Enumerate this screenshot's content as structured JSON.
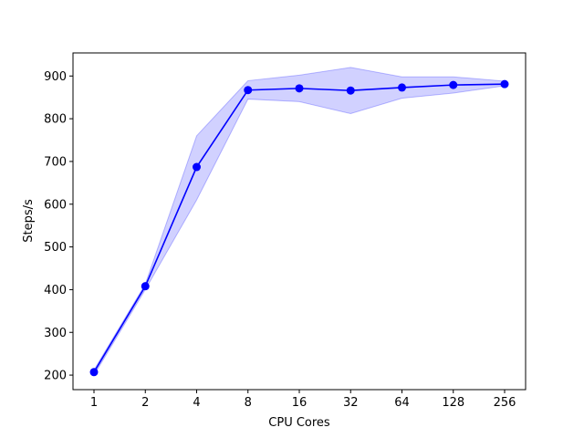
{
  "chart_data": {
    "type": "line",
    "title": "",
    "xlabel": "CPU Cores",
    "ylabel": "Steps/s",
    "x_categories": [
      "1",
      "2",
      "4",
      "8",
      "16",
      "32",
      "64",
      "128",
      "256"
    ],
    "series": [
      {
        "values": [
          207,
          408,
          687,
          867,
          871,
          866,
          873,
          879,
          881
        ],
        "band_upper": [
          212,
          413,
          760,
          889,
          902,
          920,
          898,
          898,
          888
        ],
        "band_lower": [
          200,
          400,
          610,
          846,
          840,
          812,
          848,
          860,
          877
        ],
        "color": "#0000ff",
        "band_color": "#0000ff"
      }
    ],
    "y_ticks": [
      200,
      300,
      400,
      500,
      600,
      700,
      800,
      900
    ],
    "y_tick_labels": [
      "200",
      "300",
      "400",
      "500",
      "600",
      "700",
      "800",
      "900"
    ],
    "ylim": [
      166,
      954
    ],
    "grid": false,
    "legend": "none"
  }
}
